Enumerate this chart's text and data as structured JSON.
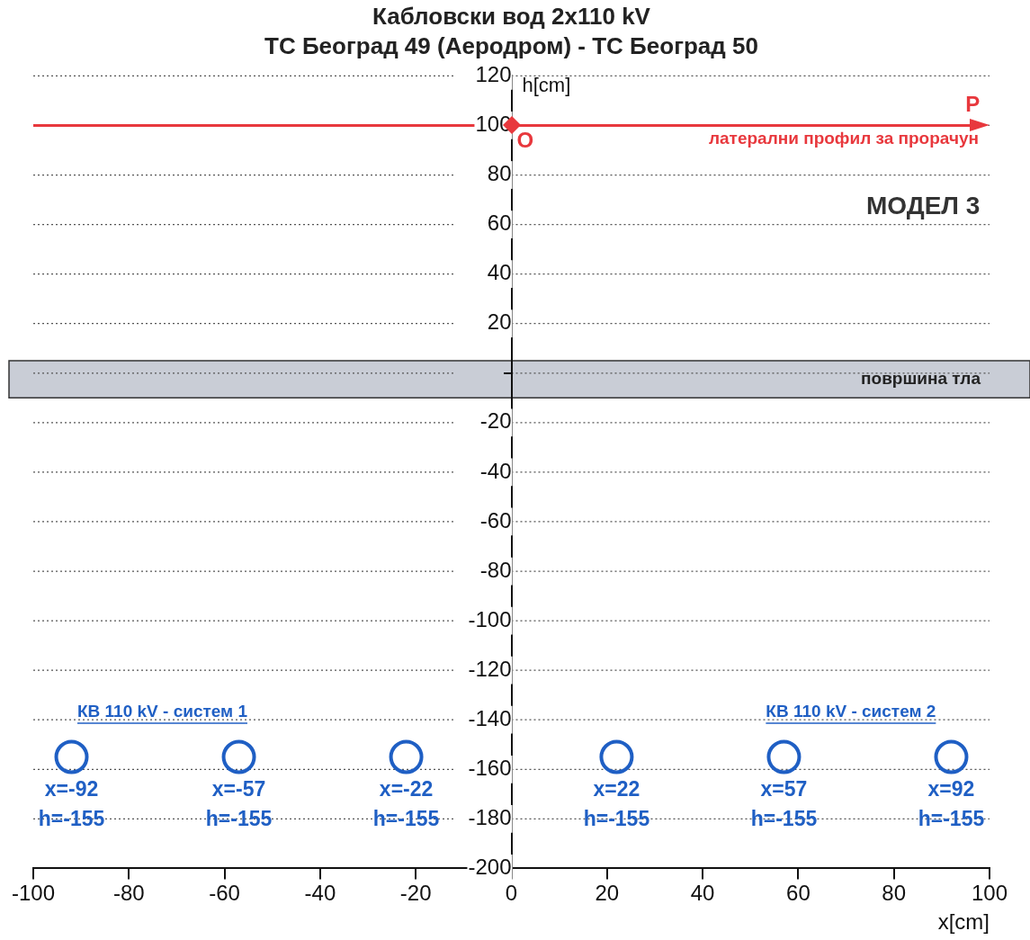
{
  "chart_data": {
    "type": "scatter",
    "title": "Кабловски вод 2x110 kV",
    "subtitle": "ТС Београд 49 (Аеродром) - ТС Београд 50",
    "xlabel": "x[cm]",
    "ylabel": "h[cm]",
    "x": [
      -92,
      -57,
      -22,
      22,
      57,
      92
    ],
    "series": [
      {
        "color": "#1f5fc4",
        "values": [
          -155,
          -155,
          -155,
          -155,
          -155,
          -155
        ],
        "value_labels": [
          "x=-92\nh=-155",
          "x=-57\nh=-155",
          "x=-22\nh=-155",
          "x=22\nh=-155",
          "x=57\nh=-155",
          "x=92\nh=-155"
        ]
      }
    ],
    "marker": "circle",
    "legend": false,
    "grid": "y",
    "xlim": [
      -100,
      100
    ],
    "xticks": [
      -100,
      -80,
      -60,
      -40,
      -20,
      0,
      20,
      40,
      60,
      80,
      100
    ],
    "ylim": [
      -200,
      120
    ],
    "yticks": [
      -200,
      -180,
      -160,
      -140,
      -120,
      -100,
      -80,
      -60,
      -40,
      -20,
      {
        "value": 0,
        "label": null
      },
      20,
      40,
      60,
      80,
      100,
      120
    ],
    "ref_lines": [
      {
        "axis": "y",
        "value": 100,
        "label": "латерални профил за прорачун",
        "color": "#e8383d"
      }
    ],
    "bands": [
      {
        "axis": "y",
        "from": -10,
        "to": 5,
        "label": "површина тла",
        "color": "#c9cdd6"
      }
    ],
    "annotations": [
      "МОДЕЛ 3",
      "КВ 110 kV - систем 1",
      "КВ 110 kV - систем 2",
      {
        "text": "O",
        "x": 0,
        "y": 100
      },
      "P"
    ]
  }
}
